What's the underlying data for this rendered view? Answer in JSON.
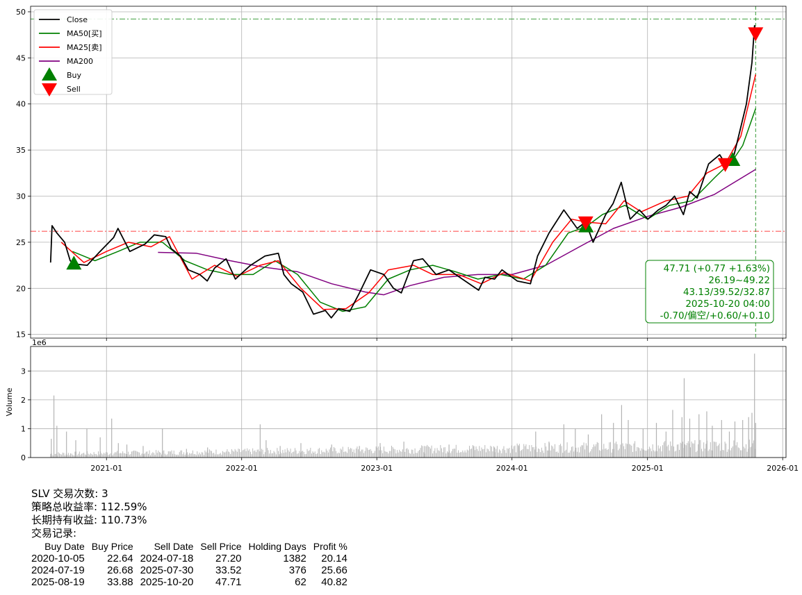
{
  "chart_data": [
    {
      "type": "line",
      "xlabel": "",
      "ylabel": "",
      "x_ticks": [
        "2021-01",
        "2022-01",
        "2023-01",
        "2024-01",
        "2025-01",
        "2026-01"
      ],
      "x_range": [
        "2020-06-10",
        "2026-01-10"
      ],
      "y_ticks": [
        15,
        20,
        25,
        30,
        35,
        40,
        45,
        50
      ],
      "ylim": [
        14.6,
        50.6
      ],
      "grid": true,
      "legend_position": "top-left",
      "legend": [
        "Close",
        "MA50[买]",
        "MA25[卖]",
        "MA200",
        "Buy",
        "Sell"
      ],
      "series": [
        {
          "name": "Close",
          "color": "#000000",
          "x": [
            "2020-08-03",
            "2020-08-07",
            "2020-08-20",
            "2020-09-10",
            "2020-09-25",
            "2020-10-05",
            "2020-11-10",
            "2020-12-10",
            "2021-01-20",
            "2021-02-01",
            "2021-03-05",
            "2021-04-15",
            "2021-05-10",
            "2021-06-10",
            "2021-06-25",
            "2021-07-20",
            "2021-08-10",
            "2021-09-10",
            "2021-09-30",
            "2021-10-20",
            "2021-11-20",
            "2021-12-15",
            "2022-01-25",
            "2022-03-05",
            "2022-04-10",
            "2022-04-25",
            "2022-05-15",
            "2022-06-15",
            "2022-07-14",
            "2022-08-15",
            "2022-08-31",
            "2022-09-20",
            "2022-10-20",
            "2022-11-15",
            "2022-12-15",
            "2023-01-20",
            "2023-02-15",
            "2023-03-08",
            "2023-04-10",
            "2023-05-05",
            "2023-06-10",
            "2023-07-15",
            "2023-08-20",
            "2023-10-03",
            "2023-10-20",
            "2023-11-15",
            "2023-12-05",
            "2024-01-15",
            "2024-02-20",
            "2024-03-10",
            "2024-04-10",
            "2024-05-20",
            "2024-06-25",
            "2024-07-18",
            "2024-08-07",
            "2024-09-10",
            "2024-09-30",
            "2024-10-22",
            "2024-11-15",
            "2024-12-10",
            "2025-01-02",
            "2025-01-30",
            "2025-02-20",
            "2025-03-15",
            "2025-04-08",
            "2025-04-25",
            "2025-05-15",
            "2025-06-15",
            "2025-07-15",
            "2025-07-30",
            "2025-08-19",
            "2025-09-10",
            "2025-09-25",
            "2025-10-10",
            "2025-10-17",
            "2025-10-20"
          ],
          "values": [
            22.8,
            26.8,
            26.0,
            25.0,
            23.0,
            22.64,
            22.5,
            23.8,
            25.5,
            26.5,
            24.0,
            24.8,
            25.8,
            25.6,
            24.3,
            23.5,
            22.0,
            21.5,
            20.8,
            22.2,
            23.2,
            21.0,
            22.5,
            23.5,
            23.8,
            21.5,
            20.5,
            19.6,
            17.2,
            17.6,
            16.8,
            17.8,
            17.5,
            19.5,
            22.0,
            21.5,
            20.0,
            19.5,
            23.0,
            23.2,
            21.5,
            22.0,
            21.0,
            19.8,
            21.2,
            21.0,
            22.0,
            20.8,
            20.5,
            23.5,
            26.0,
            28.5,
            26.5,
            27.2,
            25.0,
            28.0,
            29.2,
            31.5,
            27.5,
            28.5,
            27.5,
            28.5,
            29.0,
            30.0,
            28.0,
            30.5,
            29.8,
            33.5,
            34.5,
            33.52,
            33.88,
            37.5,
            40.0,
            44.5,
            48.5,
            47.71
          ]
        },
        {
          "name": "MA50[买]",
          "color": "#008000",
          "x": [
            "2020-10-01",
            "2020-12-01",
            "2021-02-01",
            "2021-04-01",
            "2021-06-01",
            "2021-08-01",
            "2021-10-01",
            "2021-12-01",
            "2022-02-01",
            "2022-04-01",
            "2022-06-01",
            "2022-08-01",
            "2022-10-01",
            "2022-12-01",
            "2023-02-01",
            "2023-04-01",
            "2023-06-01",
            "2023-08-01",
            "2023-10-01",
            "2023-12-01",
            "2024-02-01",
            "2024-04-01",
            "2024-06-01",
            "2024-07-19",
            "2024-09-01",
            "2024-11-01",
            "2025-01-01",
            "2025-03-01",
            "2025-05-01",
            "2025-07-01",
            "2025-08-19",
            "2025-09-15",
            "2025-10-20"
          ],
          "values": [
            24.0,
            23.0,
            24.0,
            25.0,
            25.0,
            23.0,
            22.0,
            21.5,
            21.5,
            23.0,
            21.5,
            18.5,
            17.5,
            18.0,
            21.0,
            22.0,
            22.5,
            21.8,
            21.0,
            21.5,
            21.0,
            22.5,
            26.0,
            26.68,
            28.0,
            29.0,
            27.5,
            29.0,
            29.5,
            32.0,
            33.88,
            35.5,
            39.5
          ]
        },
        {
          "name": "MA25[卖]",
          "color": "#ff0000",
          "x": [
            "2020-09-01",
            "2020-11-01",
            "2021-01-01",
            "2021-03-01",
            "2021-05-01",
            "2021-06-20",
            "2021-08-20",
            "2021-10-20",
            "2021-12-20",
            "2022-02-20",
            "2022-04-10",
            "2022-06-10",
            "2022-08-10",
            "2022-10-10",
            "2022-12-10",
            "2023-02-01",
            "2023-04-10",
            "2023-06-01",
            "2023-08-10",
            "2023-10-10",
            "2023-12-10",
            "2024-02-20",
            "2024-04-20",
            "2024-06-10",
            "2024-07-18",
            "2024-09-10",
            "2024-10-30",
            "2024-12-15",
            "2025-02-20",
            "2025-04-20",
            "2025-06-10",
            "2025-07-30",
            "2025-09-10",
            "2025-10-20"
          ],
          "values": [
            25.0,
            22.8,
            24.0,
            25.0,
            24.5,
            25.6,
            21.0,
            22.5,
            21.3,
            22.5,
            23.0,
            20.0,
            17.7,
            17.8,
            19.5,
            22.0,
            22.5,
            21.5,
            21.5,
            20.5,
            21.7,
            20.8,
            25.0,
            27.5,
            27.2,
            27.0,
            29.5,
            28.3,
            29.5,
            30.0,
            32.5,
            33.52,
            36.5,
            43.2
          ]
        },
        {
          "name": "MA200",
          "color": "#800080",
          "x": [
            "2021-05-20",
            "2021-09-01",
            "2021-12-01",
            "2022-03-01",
            "2022-06-01",
            "2022-09-01",
            "2022-12-01",
            "2023-01-20",
            "2023-04-01",
            "2023-07-01",
            "2023-10-01",
            "2024-01-01",
            "2024-04-01",
            "2024-07-01",
            "2024-10-01",
            "2025-01-01",
            "2025-04-01",
            "2025-07-01",
            "2025-10-20"
          ],
          "values": [
            23.9,
            23.8,
            23.0,
            22.3,
            21.8,
            20.5,
            19.6,
            19.3,
            20.3,
            21.2,
            21.5,
            21.5,
            22.5,
            24.5,
            26.5,
            27.8,
            28.8,
            30.2,
            32.9
          ]
        }
      ],
      "markers": [
        {
          "name": "Buy",
          "color": "#008000",
          "symbol": "triangle-up",
          "points": [
            {
              "date": "2020-10-05",
              "price": 22.64
            },
            {
              "date": "2024-07-19",
              "price": 26.68
            },
            {
              "date": "2025-08-19",
              "price": 33.88
            }
          ]
        },
        {
          "name": "Sell",
          "color": "#ff0000",
          "symbol": "triangle-down",
          "points": [
            {
              "date": "2024-07-18",
              "price": 27.2
            },
            {
              "date": "2025-07-30",
              "price": 33.52
            },
            {
              "date": "2025-10-20",
              "price": 47.71
            }
          ]
        }
      ],
      "hlines": [
        {
          "value": 49.22,
          "color": "#008000",
          "style": "dash-dot"
        },
        {
          "value": 26.19,
          "color": "#ff0000",
          "style": "dash-dot"
        }
      ],
      "vline": {
        "date": "2025-10-20",
        "color": "#008000",
        "style": "dashed"
      },
      "info_box": {
        "color": "#008000",
        "lines": [
          "47.71 (+0.77 +1.63%)",
          "26.19~49.22",
          "43.13/39.52/32.87",
          "2025-10-20 04:00",
          "-0.70/偏空/+0.60/+0.10"
        ]
      }
    },
    {
      "type": "bar",
      "ylabel": "Volume",
      "scale_label": "1e6",
      "y_ticks": [
        0,
        1,
        2,
        3
      ],
      "ylim": [
        0,
        3.85
      ],
      "grid": true,
      "bar_color": "#b3b3b3",
      "x": [
        "2020-08-05",
        "2020-08-12",
        "2020-08-20",
        "2020-09-15",
        "2020-10-10",
        "2020-11-09",
        "2020-12-15",
        "2021-01-15",
        "2021-02-02",
        "2021-02-25",
        "2021-04-10",
        "2021-06-01",
        "2021-08-05",
        "2021-10-01",
        "2022-02-20",
        "2022-03-08",
        "2022-04-15",
        "2022-06-10",
        "2022-09-01",
        "2022-11-15",
        "2023-01-10",
        "2023-03-15",
        "2023-05-10",
        "2023-07-15",
        "2023-09-20",
        "2023-11-15",
        "2024-01-20",
        "2024-03-05",
        "2024-04-10",
        "2024-05-20",
        "2024-06-20",
        "2024-07-25",
        "2024-08-30",
        "2024-10-01",
        "2024-10-23",
        "2024-11-10",
        "2024-12-20",
        "2025-01-25",
        "2025-02-20",
        "2025-03-10",
        "2025-04-04",
        "2025-04-10",
        "2025-04-25",
        "2025-05-20",
        "2025-06-10",
        "2025-06-25",
        "2025-07-20",
        "2025-08-10",
        "2025-08-25",
        "2025-09-15",
        "2025-10-01",
        "2025-10-10",
        "2025-10-17",
        "2025-10-20"
      ],
      "values": [
        0.65,
        2.15,
        1.1,
        0.9,
        0.6,
        1.0,
        0.7,
        1.35,
        0.5,
        0.45,
        0.4,
        1.0,
        0.3,
        0.35,
        1.15,
        0.6,
        0.4,
        0.5,
        0.45,
        0.4,
        0.5,
        0.55,
        0.4,
        0.45,
        0.4,
        0.35,
        0.4,
        0.9,
        0.55,
        1.15,
        1.0,
        0.8,
        1.5,
        1.2,
        1.82,
        1.3,
        1.0,
        1.2,
        0.9,
        1.65,
        1.4,
        2.75,
        1.35,
        1.5,
        1.6,
        1.1,
        1.3,
        0.9,
        1.25,
        1.3,
        1.4,
        1.55,
        3.6,
        1.2
      ]
    }
  ],
  "summary": {
    "trade_count": "SLV 交易次数: 3",
    "strategy_return": "策略总收益率: 112.59%",
    "hold_return": "长期持有收益: 110.73%",
    "records_title": "交易记录:"
  },
  "trades": {
    "headers": [
      "Buy Date",
      "Buy Price",
      "Sell Date",
      "Sell Price",
      "Holding Days",
      "Profit %"
    ],
    "rows": [
      [
        "2020-10-05",
        "22.64",
        "2024-07-18",
        "27.20",
        "1382",
        "20.14"
      ],
      [
        "2024-07-19",
        "26.68",
        "2025-07-30",
        "33.52",
        "376",
        "25.66"
      ],
      [
        "2025-08-19",
        "33.88",
        "2025-10-20",
        "47.71",
        "62",
        "40.82"
      ]
    ]
  }
}
